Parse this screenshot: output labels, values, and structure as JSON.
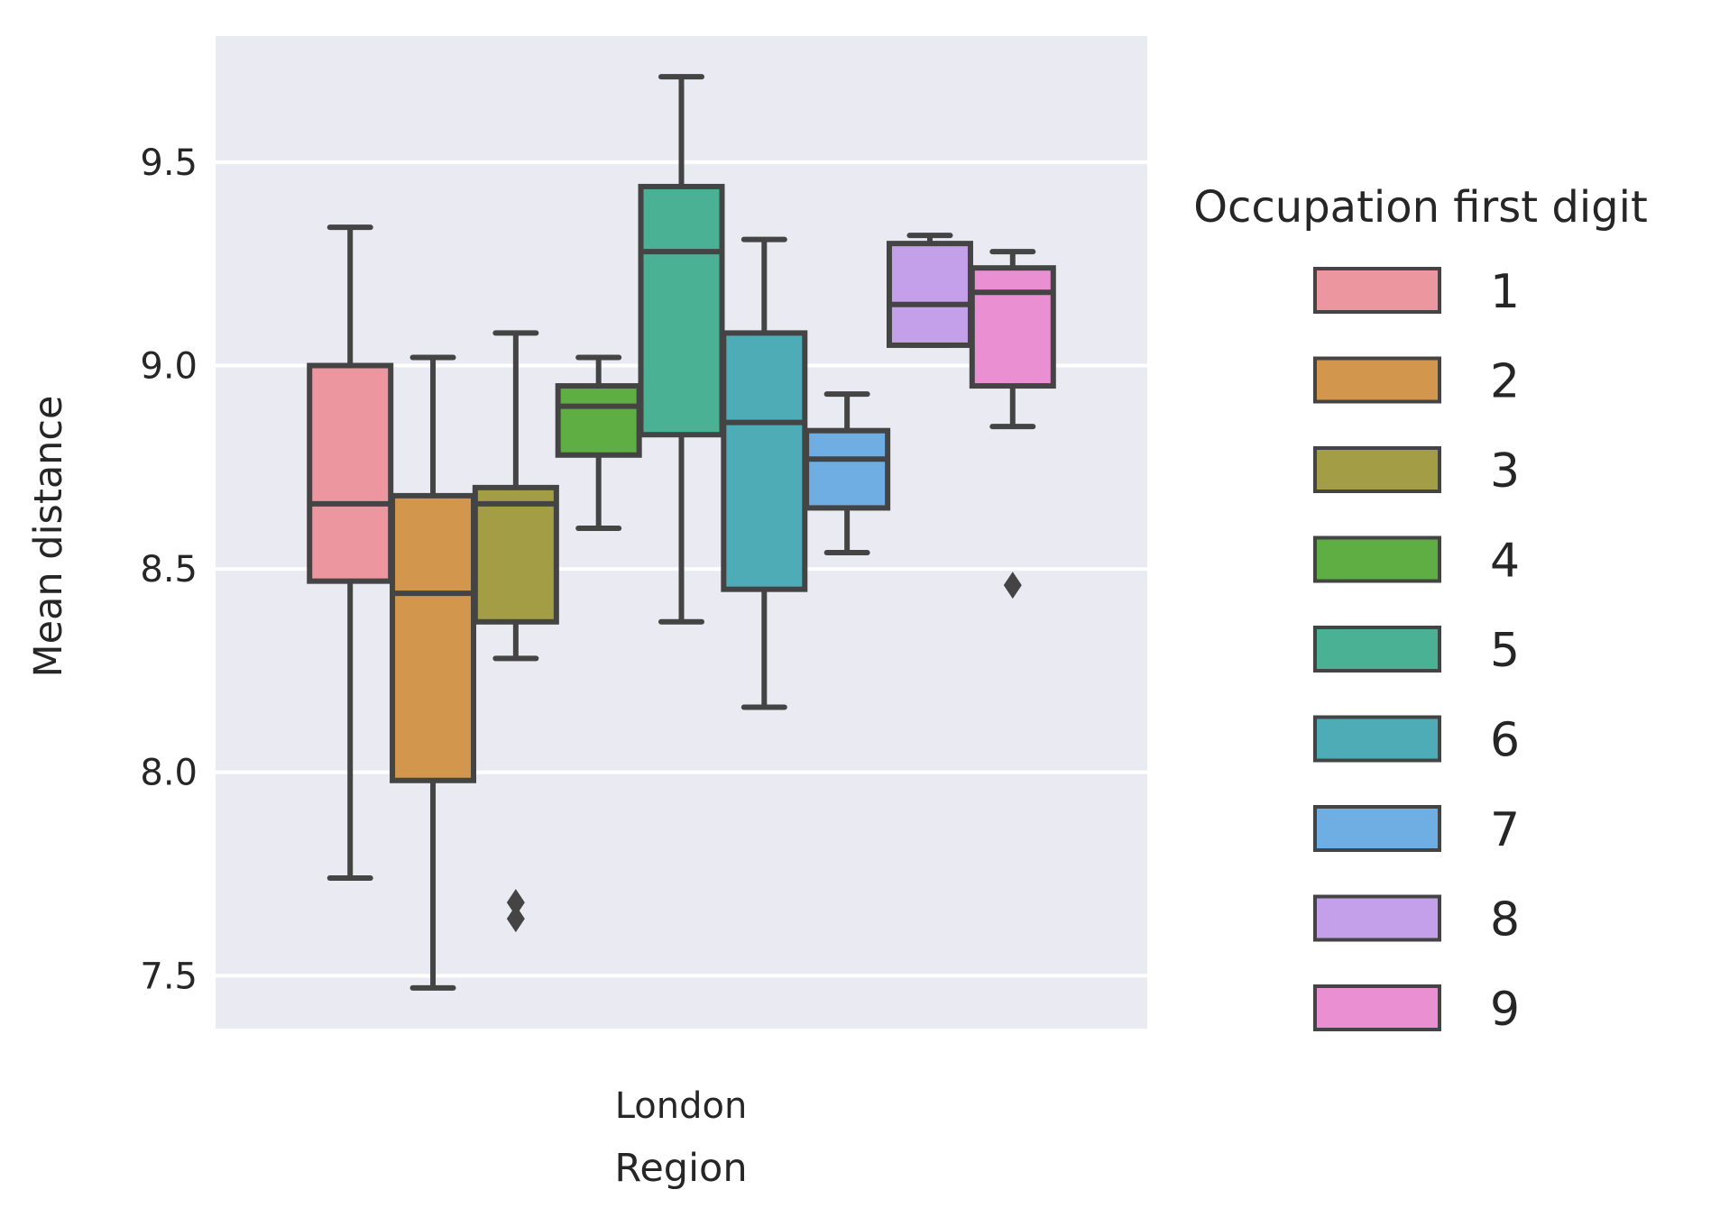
{
  "chart_data": {
    "type": "box",
    "xlabel": "Region",
    "ylabel": "Mean distance",
    "categories": [
      "London"
    ],
    "yticks": [
      "7.5",
      "8.0",
      "8.5",
      "9.0",
      "9.5"
    ],
    "ylim": [
      7.37,
      9.81
    ],
    "grid": true,
    "legend": {
      "title": "Occupation first digit",
      "placement": "right"
    },
    "series": [
      {
        "name": "1",
        "color": "#ec97a0",
        "whisker_low": 7.74,
        "q1": 8.47,
        "median": 8.66,
        "q3": 9.0,
        "whisker_high": 9.34,
        "outliers": []
      },
      {
        "name": "2",
        "color": "#d2964d",
        "whisker_low": 7.47,
        "q1": 7.98,
        "median": 8.44,
        "q3": 8.68,
        "whisker_high": 9.02,
        "outliers": []
      },
      {
        "name": "3",
        "color": "#a39e46",
        "whisker_low": 8.28,
        "q1": 8.37,
        "median": 8.66,
        "q3": 8.7,
        "whisker_high": 9.08,
        "outliers": [
          7.68,
          7.64
        ]
      },
      {
        "name": "4",
        "color": "#5fae44",
        "whisker_low": 8.6,
        "q1": 8.78,
        "median": 8.9,
        "q3": 8.95,
        "whisker_high": 9.02,
        "outliers": []
      },
      {
        "name": "5",
        "color": "#4ab195",
        "whisker_low": 8.37,
        "q1": 8.83,
        "median": 9.28,
        "q3": 9.44,
        "whisker_high": 9.71,
        "outliers": []
      },
      {
        "name": "6",
        "color": "#4eacb6",
        "whisker_low": 8.16,
        "q1": 8.45,
        "median": 8.86,
        "q3": 9.08,
        "whisker_high": 9.31,
        "outliers": []
      },
      {
        "name": "7",
        "color": "#6eaee2",
        "whisker_low": 8.54,
        "q1": 8.65,
        "median": 8.77,
        "q3": 8.84,
        "whisker_high": 8.93,
        "outliers": []
      },
      {
        "name": "8",
        "color": "#c5a0ea",
        "whisker_low": 9.05,
        "q1": 9.05,
        "median": 9.15,
        "q3": 9.3,
        "whisker_high": 9.32,
        "outliers": []
      },
      {
        "name": "9",
        "color": "#e98fd2",
        "whisker_low": 8.85,
        "q1": 8.95,
        "median": 9.18,
        "q3": 9.24,
        "whisker_high": 9.28,
        "outliers": [
          8.46
        ]
      }
    ]
  }
}
